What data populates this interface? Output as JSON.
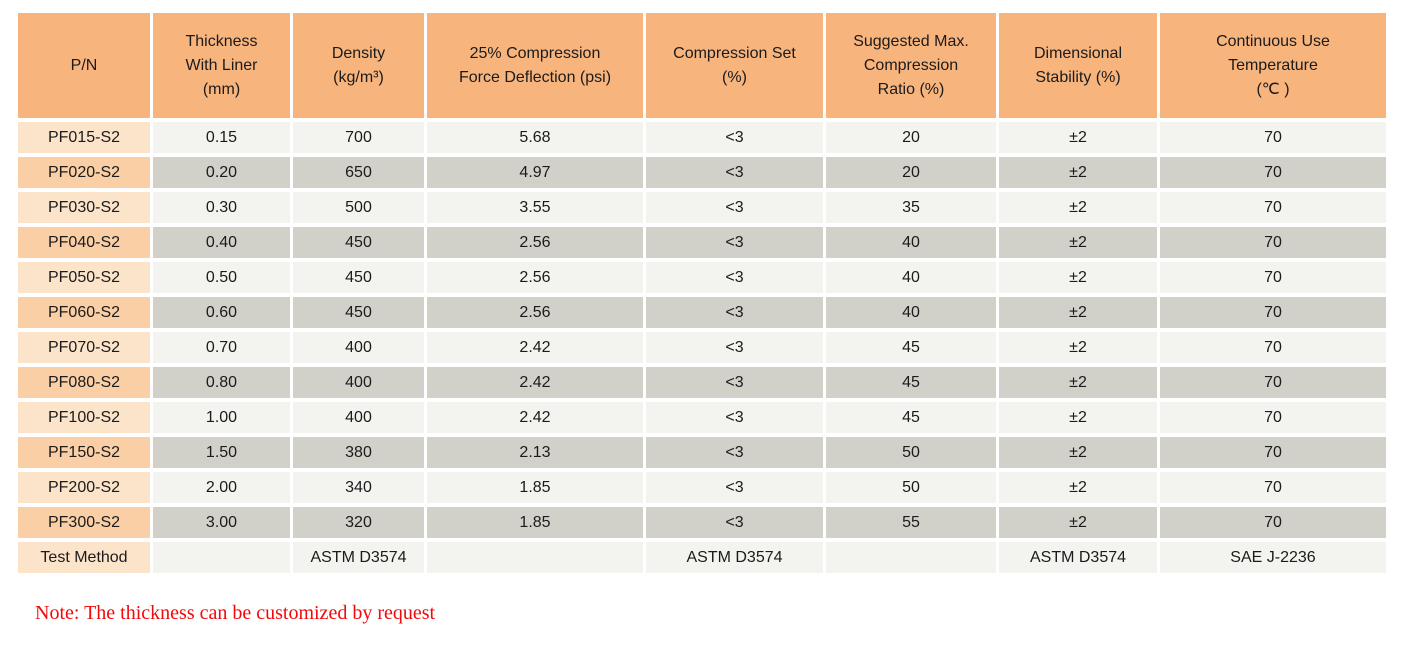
{
  "table": {
    "columns": [
      {
        "id": "pn",
        "label": "P/N",
        "lines": [
          "P/N"
        ]
      },
      {
        "id": "thickness",
        "label": "Thickness With Liner (mm)",
        "lines": [
          "Thickness",
          "With Liner",
          "(mm)"
        ]
      },
      {
        "id": "density",
        "label": "Density (kg/m³)",
        "lines": [
          "Density",
          "(kg/m³)"
        ]
      },
      {
        "id": "compression-force",
        "label": "25% Compression Force Deflection (psi)",
        "lines": [
          "25% Compression",
          "Force Deflection (psi)"
        ]
      },
      {
        "id": "compression-set",
        "label": "Compression Set (%)",
        "lines": [
          "Compression Set",
          "(%)"
        ]
      },
      {
        "id": "max-compression",
        "label": "Suggested Max. Compression Ratio (%)",
        "lines": [
          "Suggested Max.",
          "Compression",
          "Ratio (%)"
        ]
      },
      {
        "id": "dimensional-stability",
        "label": "Dimensional Stability (%)",
        "lines": [
          "Dimensional",
          "Stability (%)"
        ]
      },
      {
        "id": "continuous-use-temp",
        "label": "Continuous Use Temperature (℃ )",
        "lines": [
          "Continuous Use",
          "Temperature",
          "(℃ )"
        ]
      }
    ],
    "rows": [
      {
        "pn": "PF015-S2",
        "values": [
          "0.15",
          "700",
          "5.68",
          "<3",
          "20",
          "±2",
          "70"
        ]
      },
      {
        "pn": "PF020-S2",
        "values": [
          "0.20",
          "650",
          "4.97",
          "<3",
          "20",
          "±2",
          "70"
        ]
      },
      {
        "pn": "PF030-S2",
        "values": [
          "0.30",
          "500",
          "3.55",
          "<3",
          "35",
          "±2",
          "70"
        ]
      },
      {
        "pn": "PF040-S2",
        "values": [
          "0.40",
          "450",
          "2.56",
          "<3",
          "40",
          "±2",
          "70"
        ]
      },
      {
        "pn": "PF050-S2",
        "values": [
          "0.50",
          "450",
          "2.56",
          "<3",
          "40",
          "±2",
          "70"
        ]
      },
      {
        "pn": "PF060-S2",
        "values": [
          "0.60",
          "450",
          "2.56",
          "<3",
          "40",
          "±2",
          "70"
        ]
      },
      {
        "pn": "PF070-S2",
        "values": [
          "0.70",
          "400",
          "2.42",
          "<3",
          "45",
          "±2",
          "70"
        ]
      },
      {
        "pn": "PF080-S2",
        "values": [
          "0.80",
          "400",
          "2.42",
          "<3",
          "45",
          "±2",
          "70"
        ]
      },
      {
        "pn": "PF100-S2",
        "values": [
          "1.00",
          "400",
          "2.42",
          "<3",
          "45",
          "±2",
          "70"
        ]
      },
      {
        "pn": "PF150-S2",
        "values": [
          "1.50",
          "380",
          "2.13",
          "<3",
          "50",
          "±2",
          "70"
        ]
      },
      {
        "pn": "PF200-S2",
        "values": [
          "2.00",
          "340",
          "1.85",
          "<3",
          "50",
          "±2",
          "70"
        ]
      },
      {
        "pn": "PF300-S2",
        "values": [
          "3.00",
          "320",
          "1.85",
          "<3",
          "55",
          "±2",
          "70"
        ]
      },
      {
        "pn": "Test Method",
        "footer": true,
        "values": [
          "",
          "ASTM D3574",
          "",
          "ASTM D3574",
          "",
          "ASTM D3574",
          "SAE J-2236"
        ]
      }
    ]
  },
  "note": "Note: The thickness can be customized by request",
  "colors": {
    "header_bg": "#F8B47D",
    "pn_light_bg": "#FCE4CB",
    "pn_dark_bg": "#FACFA6",
    "row_light_bg": "#F3F3EF",
    "row_dark_bg": "#D1D1C9",
    "note_text": "#F20909",
    "table_text": "#1B1B1B"
  }
}
